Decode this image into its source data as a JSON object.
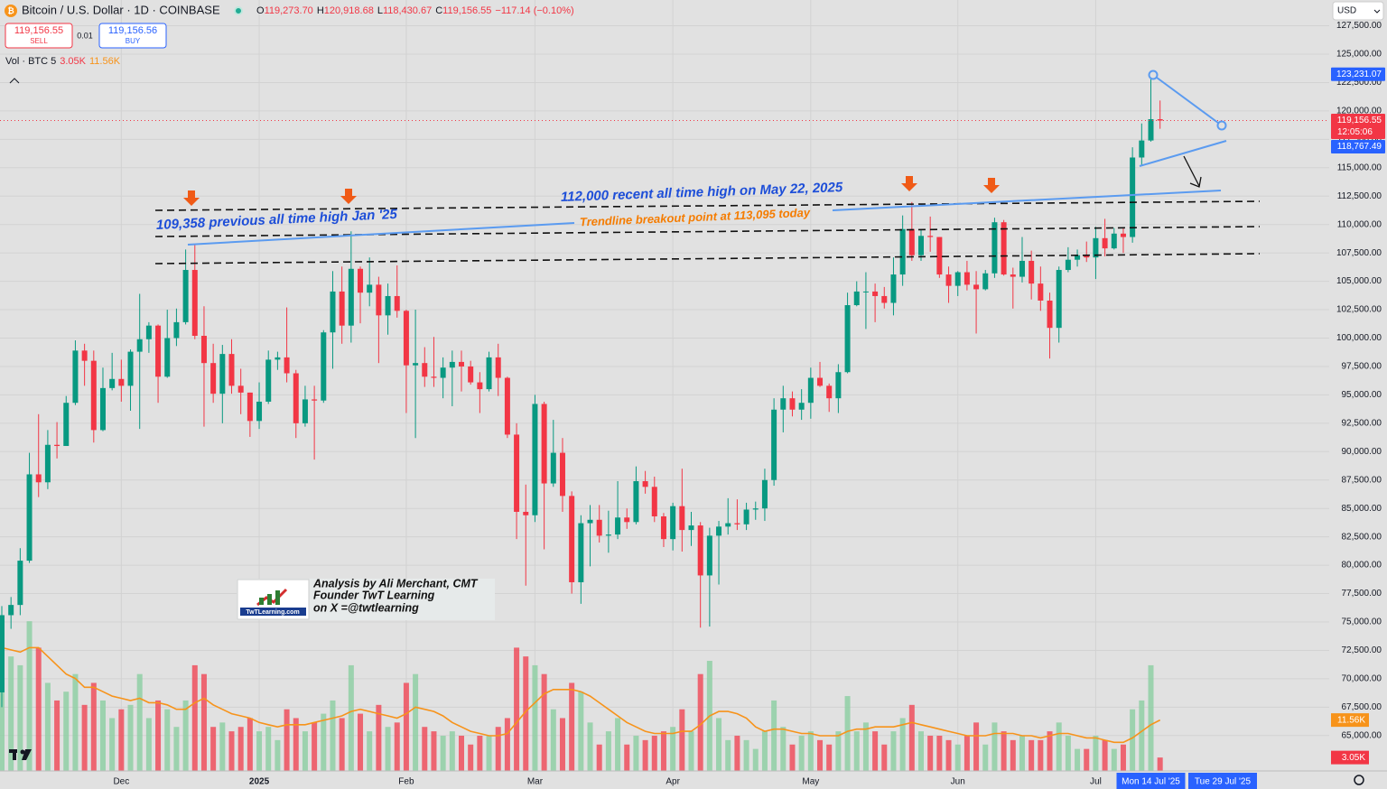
{
  "chart_data": {
    "type": "candlestick",
    "title": "Bitcoin / U.S. Dollar · 1D · COINBASE",
    "ohlc_readout": [
      {
        "prefix": "O",
        "value": 119273.7,
        "label": "119,273.70"
      },
      {
        "prefix": "H",
        "value": 120918.68,
        "label": "120,918.68"
      },
      {
        "prefix": "L",
        "value": 118430.67,
        "label": "118,430.67"
      },
      {
        "prefix": "C",
        "value": 119156.55,
        "label": "119,156.55"
      }
    ],
    "change": {
      "value": -117.14,
      "label": "−117.14 (−0.10%)"
    },
    "sell": {
      "value": 119156.55,
      "label": "119,156.55",
      "text": "SELL"
    },
    "spread": "0.01",
    "buy": {
      "value": 119156.56,
      "label": "119,156.56",
      "text": "BUY"
    },
    "currency": "USD",
    "categories": [
      null,
      null,
      null,
      null,
      null,
      null,
      null,
      null,
      null,
      null,
      null,
      null,
      null,
      "Dec",
      null,
      null,
      null,
      null,
      null,
      null,
      null,
      null,
      null,
      null,
      null,
      null,
      null,
      null,
      "2025",
      null,
      null,
      null,
      null,
      null,
      null,
      null,
      null,
      null,
      null,
      null,
      null,
      null,
      null,
      null,
      "Feb",
      null,
      null,
      null,
      null,
      null,
      null,
      null,
      null,
      null,
      null,
      null,
      null,
      null,
      "Mar",
      null,
      null,
      null,
      null,
      null,
      null,
      null,
      null,
      null,
      null,
      null,
      null,
      null,
      null,
      "Apr",
      null,
      null,
      null,
      null,
      null,
      null,
      null,
      null,
      null,
      null,
      null,
      null,
      null,
      null,
      "May",
      null,
      null,
      null,
      null,
      null,
      null,
      null,
      null,
      null,
      null,
      null,
      null,
      null,
      null,
      null,
      "Jun",
      null,
      null,
      null,
      null,
      null,
      null,
      null,
      null,
      null,
      null,
      null,
      null,
      null,
      null,
      "Jul",
      null,
      null,
      null,
      null,
      null,
      null,
      null
    ],
    "open": [
      68800,
      75600,
      76500,
      80400,
      88000,
      87300,
      90600,
      90500,
      94300,
      98900,
      98000,
      91900,
      95600,
      96400,
      95800,
      98800,
      99900,
      101100,
      96600,
      100000,
      101400,
      106000,
      100200,
      97800,
      95100,
      98600,
      95800,
      95200,
      92700,
      94400,
      98100,
      98300,
      96900,
      92500,
      94600,
      94500,
      100500,
      104100,
      101100,
      106100,
      104000,
      104700,
      102000,
      103700,
      102400,
      97600,
      97800,
      96600,
      96500,
      97400,
      97900,
      97500,
      96100,
      95500,
      98300,
      96500,
      91500,
      84700,
      84400,
      94200,
      87200,
      89900,
      86100,
      78500,
      83700,
      84000,
      82600,
      82700,
      84200,
      83800,
      87400,
      86900,
      84300,
      82300,
      85200,
      83100,
      83500,
      79100,
      82600,
      83400,
      83700,
      83600,
      84900,
      85000,
      87500,
      93700,
      94700,
      93700,
      94300,
      96500,
      95800,
      94700,
      97000,
      102900,
      104100,
      104100,
      103700,
      103100,
      105600,
      109600,
      107300,
      109000,
      108900,
      105600,
      104600,
      105800,
      104700,
      104300,
      105700,
      110200,
      105600,
      105400,
      106800,
      104800,
      103300,
      100900,
      106000,
      106900,
      107300,
      107100,
      108800,
      107900,
      109200,
      108900,
      115900,
      117400,
      119273.7
    ],
    "high": [
      76400,
      77200,
      81500,
      89900,
      93300,
      91900,
      92600,
      94900,
      99800,
      99500,
      98900,
      97400,
      98700,
      98100,
      99000,
      103900,
      101400,
      101200,
      102500,
      102600,
      107800,
      108300,
      102800,
      99500,
      99400,
      99900,
      97300,
      95200,
      96100,
      98900,
      98800,
      102700,
      97200,
      95800,
      95800,
      100700,
      105900,
      106300,
      109400,
      106300,
      107100,
      105400,
      104800,
      106400,
      102500,
      102500,
      99200,
      100100,
      98300,
      98900,
      98900,
      98000,
      97000,
      98800,
      99500,
      96600,
      92500,
      87100,
      95000,
      94400,
      92800,
      91200,
      86500,
      84400,
      85300,
      85300,
      84800,
      87400,
      85000,
      88700,
      88300,
      87800,
      84600,
      85500,
      88500,
      84700,
      83800,
      83300,
      83900,
      85900,
      85800,
      85500,
      85600,
      88500,
      94700,
      95800,
      95300,
      95500,
      97400,
      97900,
      96000,
      97700,
      104000,
      105000,
      105800,
      104800,
      104500,
      107100,
      110800,
      111980,
      109500,
      110700,
      108900,
      106300,
      105900,
      106800,
      105900,
      106000,
      110600,
      110400,
      106200,
      108900,
      107700,
      106300,
      104000,
      106300,
      108000,
      107800,
      108500,
      109800,
      110500,
      109700,
      109700,
      116800,
      118900,
      123231.07,
      120918.68
    ],
    "low": [
      67500,
      74400,
      75600,
      80200,
      86000,
      86700,
      89400,
      90500,
      94100,
      95800,
      90800,
      91800,
      95400,
      94400,
      93600,
      92000,
      98700,
      94300,
      96500,
      99300,
      101200,
      99900,
      92200,
      94300,
      92500,
      95100,
      93300,
      91300,
      92000,
      94200,
      97200,
      96100,
      91200,
      92200,
      89300,
      94300,
      97300,
      99500,
      99600,
      101300,
      102800,
      97800,
      100300,
      101800,
      93400,
      91200,
      95700,
      95700,
      94700,
      94000,
      95300,
      95900,
      93400,
      95300,
      94900,
      91200,
      82300,
      78200,
      83800,
      81400,
      86900,
      84700,
      77500,
      76600,
      79900,
      82000,
      81100,
      82300,
      83200,
      83600,
      86300,
      83800,
      81600,
      81300,
      81200,
      81700,
      74500,
      74600,
      78300,
      82700,
      83100,
      83100,
      84000,
      83900,
      87000,
      91700,
      93100,
      92800,
      92900,
      95700,
      93500,
      93400,
      96900,
      102800,
      100800,
      101400,
      102600,
      102000,
      104600,
      106800,
      106800,
      107600,
      105300,
      103100,
      103700,
      104200,
      100400,
      104200,
      105300,
      105500,
      102600,
      104900,
      103400,
      102400,
      98200,
      99600,
      105800,
      106300,
      106700,
      105200,
      107200,
      107800,
      107500,
      108400,
      115200,
      117300,
      118430.67
    ],
    "close": [
      75600,
      76500,
      80400,
      88000,
      87300,
      90600,
      90500,
      94300,
      98900,
      98000,
      91900,
      95600,
      96400,
      95800,
      98800,
      99900,
      101100,
      96600,
      100000,
      101400,
      106000,
      100200,
      97800,
      95100,
      98600,
      95800,
      95200,
      92700,
      94400,
      98100,
      98300,
      96900,
      92500,
      94600,
      94500,
      100500,
      104100,
      101100,
      106100,
      104000,
      104700,
      102000,
      103700,
      102400,
      97600,
      97800,
      96600,
      96500,
      97400,
      97900,
      97500,
      96100,
      95500,
      98300,
      96500,
      91500,
      84700,
      84400,
      94200,
      87200,
      89900,
      86100,
      78500,
      83700,
      84000,
      82600,
      82700,
      84200,
      83800,
      87400,
      86900,
      84300,
      82300,
      85200,
      83100,
      83500,
      79100,
      82600,
      83400,
      83700,
      83600,
      84900,
      85000,
      87500,
      93700,
      94700,
      93700,
      94300,
      96500,
      95800,
      94700,
      97000,
      102900,
      104100,
      104100,
      103700,
      103100,
      105600,
      109600,
      107300,
      109000,
      108900,
      105600,
      104600,
      105800,
      104700,
      104300,
      105700,
      110200,
      105600,
      105400,
      106800,
      104800,
      103300,
      100900,
      106000,
      106900,
      107300,
      107100,
      108800,
      107900,
      109200,
      108900,
      115900,
      117400,
      119273.7,
      119156.55
    ],
    "up_color": "#089981",
    "down_color": "#f23645",
    "ylim": [
      61884,
      129770
    ],
    "yticks": [
      {
        "value": 65000,
        "label": "65,000.00"
      },
      {
        "value": 67500,
        "label": "67,500.00"
      },
      {
        "value": 70000,
        "label": "70,000.00"
      },
      {
        "value": 72500,
        "label": "72,500.00"
      },
      {
        "value": 75000,
        "label": "75,000.00"
      },
      {
        "value": 77500,
        "label": "77,500.00"
      },
      {
        "value": 80000,
        "label": "80,000.00"
      },
      {
        "value": 82500,
        "label": "82,500.00"
      },
      {
        "value": 85000,
        "label": "85,000.00"
      },
      {
        "value": 87500,
        "label": "87,500.00"
      },
      {
        "value": 90000,
        "label": "90,000.00"
      },
      {
        "value": 92500,
        "label": "92,500.00"
      },
      {
        "value": 95000,
        "label": "95,000.00"
      },
      {
        "value": 97500,
        "label": "97,500.00"
      },
      {
        "value": 100000,
        "label": "100,000.00"
      },
      {
        "value": 102500,
        "label": "102,500.00"
      },
      {
        "value": 105000,
        "label": "105,000.00"
      },
      {
        "value": 107500,
        "label": "107,500.00"
      },
      {
        "value": 110000,
        "label": "110,000.00"
      },
      {
        "value": 112500,
        "label": "112,500.00"
      },
      {
        "value": 115000,
        "label": "115,000.00"
      },
      {
        "value": 117500,
        "label": "117,500.00"
      },
      {
        "value": 120000,
        "label": "120,000.00"
      },
      {
        "value": 122500,
        "label": "122,500.00"
      },
      {
        "value": 125000,
        "label": "125,000.00"
      },
      {
        "value": 127500,
        "label": "127,500.00"
      }
    ],
    "grid": true,
    "price_tags": [
      {
        "value": 123231.07,
        "label": "123,231.07",
        "color": "#2962ff"
      },
      {
        "value": 119156.55,
        "label": "119,156.55",
        "sub": "12:05:06",
        "color": "#f23645"
      },
      {
        "value": 118767.49,
        "label": "118,767.49",
        "color": "#2962ff"
      }
    ],
    "crosshair_date": "Mon 14 Jul '25",
    "future_date": "Tue 29 Jul '25",
    "volume": {
      "name": "Vol · BTC 5",
      "last_label": "3.05K",
      "ma_last_label": "11.56K",
      "up_color": "#8fcfa4",
      "down_color": "#ef4f5d",
      "ma_color": "#f7931a",
      "vlim": [
        0,
        41000
      ],
      "values": [
        30000,
        26000,
        24000,
        34000,
        28000,
        20000,
        16000,
        18000,
        22000,
        15000,
        20000,
        16000,
        12000,
        14000,
        15000,
        22000,
        12000,
        16000,
        14000,
        10000,
        16000,
        24000,
        22000,
        10000,
        11000,
        9000,
        10000,
        12000,
        9000,
        10000,
        7000,
        14000,
        12000,
        9000,
        11000,
        13000,
        16000,
        12000,
        24000,
        13000,
        9000,
        15000,
        10000,
        11000,
        20000,
        22000,
        10000,
        9000,
        8000,
        9000,
        8000,
        6000,
        8000,
        8000,
        10000,
        12000,
        28000,
        26000,
        24000,
        22000,
        14000,
        12000,
        20000,
        18000,
        11000,
        6000,
        9000,
        12000,
        6000,
        8000,
        7000,
        8000,
        9000,
        10000,
        14000,
        9000,
        22000,
        25000,
        12000,
        7000,
        8000,
        7000,
        5000,
        9000,
        16000,
        10000,
        6000,
        8000,
        9000,
        7000,
        6000,
        9000,
        17000,
        9000,
        11000,
        9000,
        6000,
        9000,
        12000,
        15000,
        9000,
        8000,
        8000,
        7000,
        6000,
        8000,
        11000,
        6000,
        11000,
        9000,
        7000,
        8000,
        7000,
        7000,
        9000,
        11000,
        8000,
        5000,
        5000,
        8000,
        7000,
        5000,
        6000,
        14000,
        16000,
        24000,
        3050
      ],
      "ma": [
        28000,
        27500,
        27000,
        28000,
        28000,
        26000,
        24000,
        22000,
        21000,
        19000,
        19000,
        18000,
        17000,
        16500,
        16000,
        16500,
        15500,
        15500,
        15000,
        14000,
        14000,
        15500,
        16500,
        15000,
        14000,
        13000,
        12500,
        12000,
        11000,
        10500,
        10000,
        10500,
        10500,
        10500,
        11000,
        11500,
        12000,
        12500,
        13500,
        14000,
        13500,
        13000,
        12500,
        12000,
        13000,
        14500,
        14000,
        13500,
        12500,
        11000,
        10000,
        9000,
        8500,
        8000,
        8000,
        8500,
        11000,
        13500,
        15500,
        17500,
        18500,
        18500,
        18500,
        18000,
        17000,
        15500,
        14000,
        12500,
        11000,
        10000,
        9000,
        8500,
        8500,
        8500,
        9000,
        9000,
        10500,
        12500,
        13500,
        13500,
        13000,
        12000,
        10000,
        9000,
        9500,
        9500,
        9000,
        8500,
        8500,
        8000,
        8000,
        8000,
        9000,
        9500,
        9500,
        10000,
        10000,
        10000,
        10500,
        11000,
        10500,
        10000,
        9500,
        9000,
        8500,
        8000,
        8000,
        8000,
        8500,
        8500,
        8500,
        8000,
        8000,
        7500,
        8000,
        8500,
        8500,
        8000,
        7500,
        7500,
        7000,
        6500,
        6500,
        7500,
        9000,
        10500,
        11560
      ]
    },
    "annotations": [
      {
        "text": "109,358 previous all time high Jan '25",
        "color": "#1d4ed8"
      },
      {
        "text": "112,000 recent all time high on May 22, 2025",
        "color": "#1d4ed8"
      },
      {
        "text": "Trendline breakout point at 113,095 today",
        "color": "#f57c00"
      }
    ],
    "watermark": {
      "logo": "TwTLearning.com",
      "lines": [
        "Analysis by Ali Merchant, CMT",
        "Founder TwT Learning",
        "on X =@twtlearning"
      ]
    }
  }
}
